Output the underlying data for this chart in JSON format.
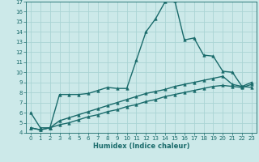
{
  "xlabel": "Humidex (Indice chaleur)",
  "background_color": "#cce9e9",
  "grid_color": "#aad4d4",
  "line_color": "#1a6b6b",
  "xlim": [
    -0.5,
    23.5
  ],
  "ylim": [
    4,
    17
  ],
  "xticks": [
    0,
    1,
    2,
    3,
    4,
    5,
    6,
    7,
    8,
    9,
    10,
    11,
    12,
    13,
    14,
    15,
    16,
    17,
    18,
    19,
    20,
    21,
    22,
    23
  ],
  "yticks": [
    4,
    5,
    6,
    7,
    8,
    9,
    10,
    11,
    12,
    13,
    14,
    15,
    16,
    17
  ],
  "series": [
    {
      "x": [
        0,
        1,
        2,
        3,
        4,
        5,
        6,
        7,
        8,
        9,
        10,
        11,
        12,
        13,
        14,
        15,
        16,
        17,
        18,
        19,
        20,
        21,
        22,
        23
      ],
      "y": [
        6.0,
        4.5,
        4.5,
        7.8,
        7.8,
        7.8,
        7.9,
        8.2,
        8.5,
        8.4,
        8.4,
        11.2,
        14.0,
        15.3,
        17.0,
        17.1,
        13.2,
        13.4,
        11.7,
        11.6,
        10.1,
        10.0,
        8.6,
        8.5
      ],
      "marker": "^",
      "markersize": 2.5,
      "linewidth": 1.0
    },
    {
      "x": [
        0,
        1,
        2,
        3,
        4,
        5,
        6,
        7,
        8,
        9,
        10,
        11,
        12,
        13,
        14,
        15,
        16,
        17,
        18,
        19,
        20,
        21,
        22,
        23
      ],
      "y": [
        4.5,
        4.3,
        4.5,
        5.2,
        5.5,
        5.8,
        6.1,
        6.4,
        6.7,
        7.0,
        7.3,
        7.6,
        7.9,
        8.1,
        8.3,
        8.6,
        8.8,
        9.0,
        9.2,
        9.4,
        9.6,
        8.8,
        8.6,
        9.0
      ],
      "marker": "^",
      "markersize": 2.5,
      "linewidth": 1.0
    },
    {
      "x": [
        0,
        1,
        2,
        3,
        4,
        5,
        6,
        7,
        8,
        9,
        10,
        11,
        12,
        13,
        14,
        15,
        16,
        17,
        18,
        19,
        20,
        21,
        22,
        23
      ],
      "y": [
        4.5,
        4.3,
        4.5,
        4.8,
        5.0,
        5.3,
        5.6,
        5.8,
        6.1,
        6.3,
        6.6,
        6.8,
        7.1,
        7.3,
        7.6,
        7.8,
        8.0,
        8.2,
        8.4,
        8.6,
        8.7,
        8.6,
        8.5,
        8.8
      ],
      "marker": "^",
      "markersize": 2.5,
      "linewidth": 1.0
    }
  ]
}
